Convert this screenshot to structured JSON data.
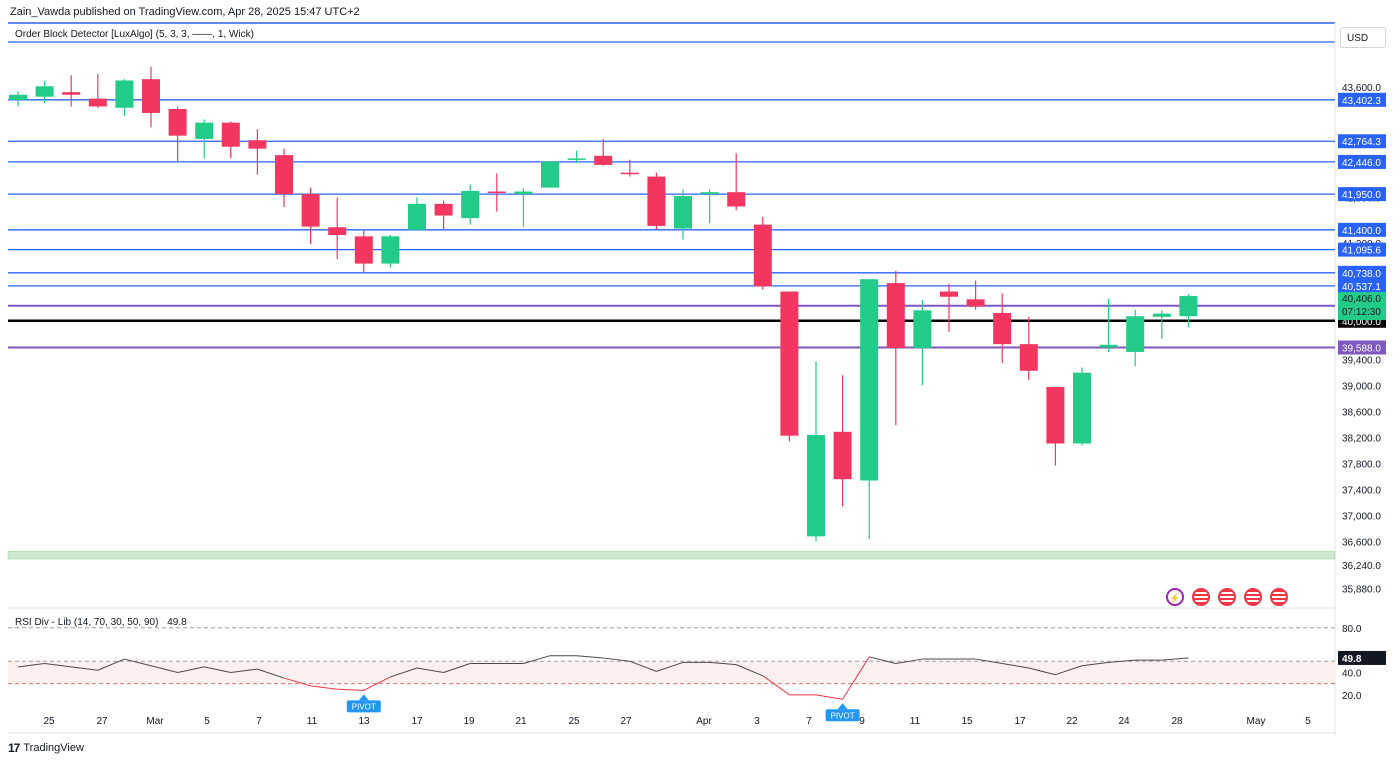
{
  "header": {
    "publisher": "Zain_Vawda published on TradingView.com, Apr 28, 2025 15:47 UTC+2",
    "indicator_legend": "Order Block Detector [LuxAlgo] (5, 3, 3, ——, 1, Wick)",
    "currency": "USD"
  },
  "footer": {
    "logo_mark": "17",
    "logo_text": "TradingView"
  },
  "colors": {
    "up": "#22cc88",
    "down": "#f23660",
    "level_line": "#2962ff",
    "zone_line": "#7e57c2",
    "round_line": "#000000",
    "green_zone": "#a5d6a7"
  },
  "event_icons": [
    "lightning-icon",
    "us-flag-icon",
    "us-flag-icon",
    "us-flag-icon",
    "us-flag-icon"
  ],
  "chart_data": [
    {
      "type": "candlestick",
      "title": "",
      "grid": false,
      "ylim": [
        35700,
        44200
      ],
      "x_ticks": [
        "25",
        "27",
        "Mar",
        "5",
        "7",
        "11",
        "13",
        "17",
        "19",
        "21",
        "25",
        "27",
        "Apr",
        "3",
        "7",
        "9",
        "11",
        "15",
        "17",
        "22",
        "24",
        "28",
        "May",
        "5"
      ],
      "y_ticks": [
        "43,600.0",
        "41,900.0",
        "41,200.0",
        "39,400.0",
        "39,000.0",
        "38,600.0",
        "38,200.0",
        "37,800.0",
        "37,400.0",
        "37,000.0",
        "36,600.0",
        "36,240.0",
        "35,880.0"
      ],
      "candles": [
        {
          "o": 43400,
          "h": 43530,
          "l": 43300,
          "c": 43480
        },
        {
          "o": 43450,
          "h": 43700,
          "l": 43350,
          "c": 43610
        },
        {
          "o": 43520,
          "h": 43780,
          "l": 43300,
          "c": 43480
        },
        {
          "o": 43420,
          "h": 43800,
          "l": 43280,
          "c": 43300
        },
        {
          "o": 43280,
          "h": 43720,
          "l": 43150,
          "c": 43700
        },
        {
          "o": 43720,
          "h": 43910,
          "l": 42980,
          "c": 43200
        },
        {
          "o": 43260,
          "h": 43300,
          "l": 42460,
          "c": 42850
        },
        {
          "o": 42800,
          "h": 43100,
          "l": 42500,
          "c": 43050
        },
        {
          "o": 43050,
          "h": 43070,
          "l": 42500,
          "c": 42680
        },
        {
          "o": 42780,
          "h": 42950,
          "l": 42250,
          "c": 42650
        },
        {
          "o": 42550,
          "h": 42650,
          "l": 41750,
          "c": 41950
        },
        {
          "o": 41950,
          "h": 42050,
          "l": 41180,
          "c": 41450
        },
        {
          "o": 41440,
          "h": 41900,
          "l": 40950,
          "c": 41320
        },
        {
          "o": 41300,
          "h": 41400,
          "l": 40750,
          "c": 40880
        },
        {
          "o": 40880,
          "h": 41320,
          "l": 40820,
          "c": 41300
        },
        {
          "o": 41400,
          "h": 41900,
          "l": 41400,
          "c": 41800
        },
        {
          "o": 41800,
          "h": 41850,
          "l": 41400,
          "c": 41620
        },
        {
          "o": 41580,
          "h": 42100,
          "l": 41480,
          "c": 42000
        },
        {
          "o": 41990,
          "h": 42270,
          "l": 41680,
          "c": 41980
        },
        {
          "o": 41950,
          "h": 42040,
          "l": 41450,
          "c": 41990
        },
        {
          "o": 42050,
          "h": 42450,
          "l": 42050,
          "c": 42450
        },
        {
          "o": 42480,
          "h": 42620,
          "l": 42430,
          "c": 42500
        },
        {
          "o": 42540,
          "h": 42800,
          "l": 42390,
          "c": 42400
        },
        {
          "o": 42280,
          "h": 42480,
          "l": 42220,
          "c": 42260
        },
        {
          "o": 42220,
          "h": 42280,
          "l": 41400,
          "c": 41460
        },
        {
          "o": 41420,
          "h": 42020,
          "l": 41250,
          "c": 41920
        },
        {
          "o": 41950,
          "h": 42020,
          "l": 41500,
          "c": 41980
        },
        {
          "o": 41980,
          "h": 42580,
          "l": 41700,
          "c": 41760
        },
        {
          "o": 41480,
          "h": 41600,
          "l": 40480,
          "c": 40530
        },
        {
          "o": 40450,
          "h": 40450,
          "l": 38140,
          "c": 38230
        },
        {
          "o": 36680,
          "h": 39370,
          "l": 36600,
          "c": 38240
        },
        {
          "o": 38290,
          "h": 39160,
          "l": 37140,
          "c": 37560
        },
        {
          "o": 37540,
          "h": 40640,
          "l": 36640,
          "c": 40640
        },
        {
          "o": 40580,
          "h": 40770,
          "l": 38390,
          "c": 39580
        },
        {
          "o": 39580,
          "h": 40320,
          "l": 39010,
          "c": 40160
        },
        {
          "o": 40450,
          "h": 40570,
          "l": 39830,
          "c": 40370
        },
        {
          "o": 40330,
          "h": 40620,
          "l": 40170,
          "c": 40220
        },
        {
          "o": 40120,
          "h": 40420,
          "l": 39350,
          "c": 39640
        },
        {
          "o": 39640,
          "h": 40060,
          "l": 39090,
          "c": 39230
        },
        {
          "o": 38980,
          "h": 38980,
          "l": 37770,
          "c": 38110
        },
        {
          "o": 38110,
          "h": 39280,
          "l": 38080,
          "c": 39200
        },
        {
          "o": 39590,
          "h": 40340,
          "l": 39520,
          "c": 39630
        },
        {
          "o": 39520,
          "h": 40170,
          "l": 39300,
          "c": 40070
        },
        {
          "o": 40060,
          "h": 40160,
          "l": 39720,
          "c": 40110
        },
        {
          "o": 40070,
          "h": 40410,
          "l": 39900,
          "c": 40380
        }
      ],
      "levels": [
        {
          "value": 43402.3,
          "label": "43,402.3",
          "kind": "level"
        },
        {
          "value": 42764.3,
          "label": "42,764.3",
          "kind": "level"
        },
        {
          "value": 42446.0,
          "label": "42,446.0",
          "kind": "level"
        },
        {
          "value": 41950.0,
          "label": "41,950.0",
          "kind": "level"
        },
        {
          "value": 41400.0,
          "label": "41,400.0",
          "kind": "level"
        },
        {
          "value": 41095.6,
          "label": "41,095.6",
          "kind": "level"
        },
        {
          "value": 40738.0,
          "label": "40,738.0",
          "kind": "level"
        },
        {
          "value": 40537.1,
          "label": "40,537.1",
          "kind": "level"
        },
        {
          "value": 40231.1,
          "label": "40,231.1",
          "kind": "zone"
        },
        {
          "value": 40000.0,
          "label": "40,000.0",
          "kind": "round"
        },
        {
          "value": 39588.0,
          "label": "39,588.0",
          "kind": "zone"
        }
      ],
      "current_price": {
        "label": "40,406.0",
        "countdown": "07:12:30"
      },
      "support_zone": {
        "from": 36330,
        "to": 36450
      }
    },
    {
      "type": "line",
      "title": "RSI Div - Lib (14, 70, 30, 50, 90)",
      "value_label": "49.8",
      "ylim": [
        10,
        95
      ],
      "y_ticks": [
        "80.0",
        "40.0",
        "20.0"
      ],
      "bands": [
        80,
        50,
        30
      ],
      "values": [
        45,
        48,
        45,
        42,
        52,
        46,
        40,
        45,
        40,
        43,
        35,
        28,
        25,
        24,
        36,
        44,
        40,
        48,
        48,
        48,
        55,
        55,
        53,
        50,
        41,
        49,
        49,
        47,
        37,
        20,
        20,
        16,
        54,
        48,
        52,
        52,
        52,
        48,
        44,
        38,
        46,
        49,
        51,
        51,
        53
      ],
      "pivots": [
        {
          "index": 13,
          "label": "PIVOT"
        },
        {
          "index": 31,
          "label": "PIVOT"
        }
      ]
    }
  ]
}
